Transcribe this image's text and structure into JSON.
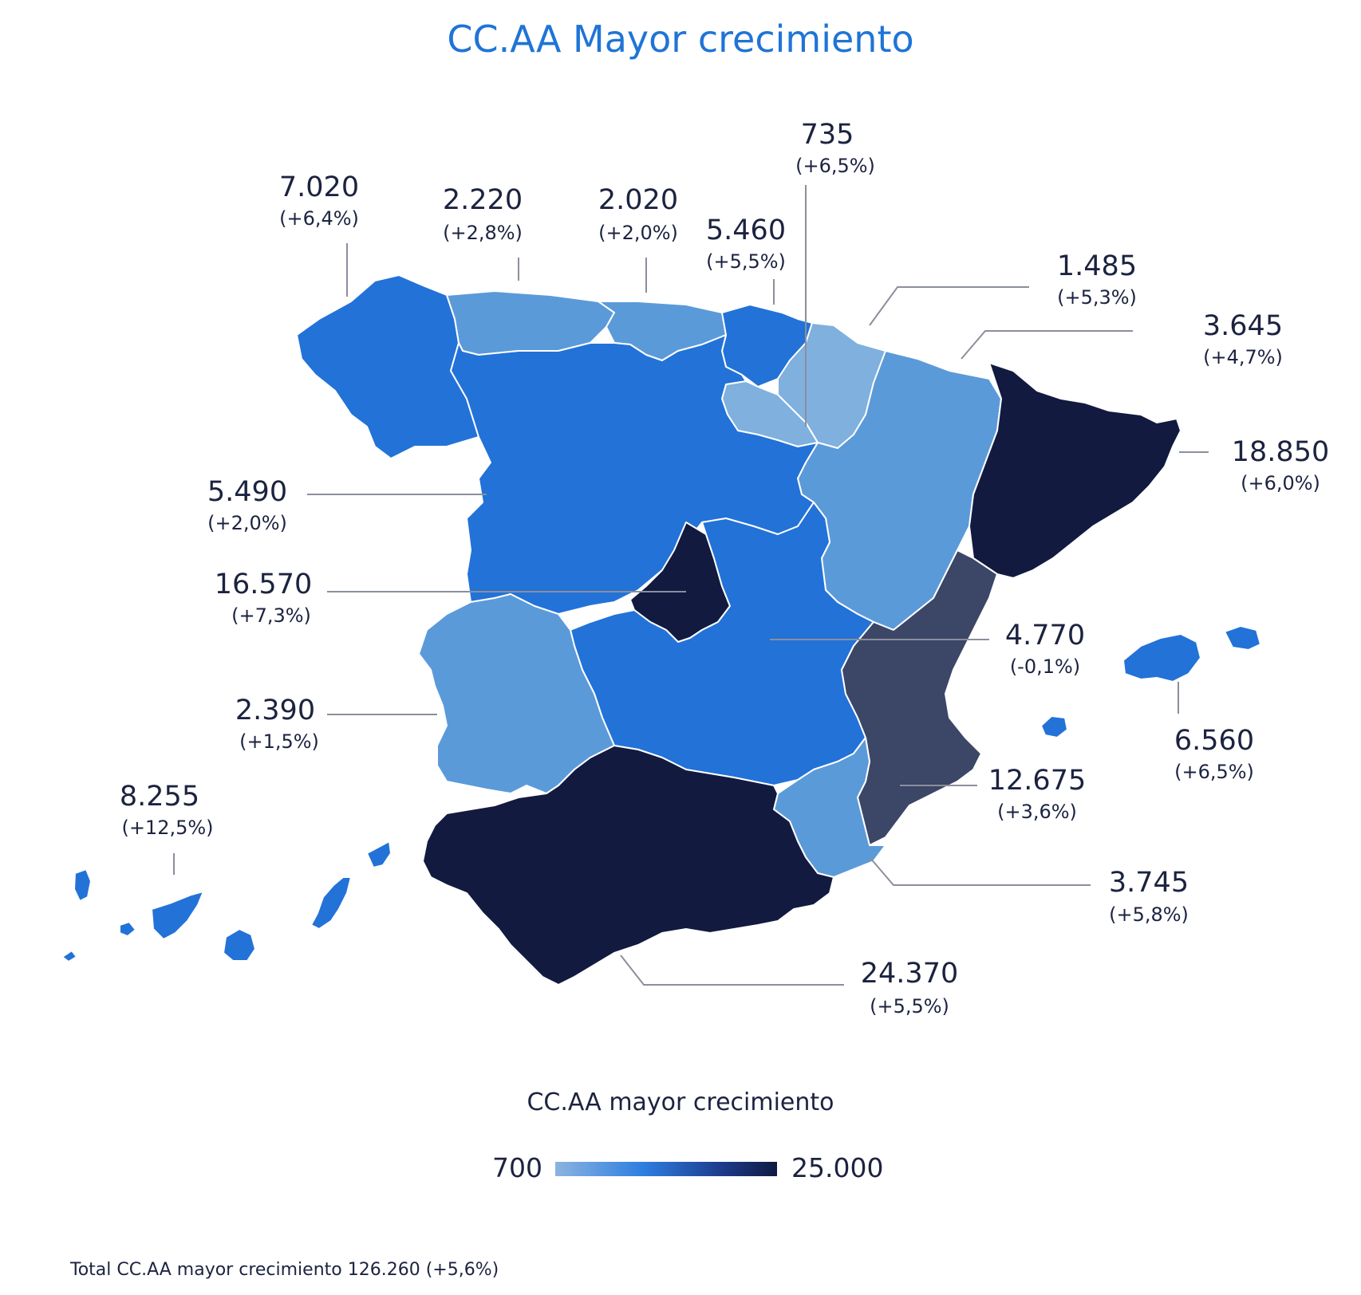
{
  "title": "CC.AA Mayor crecimiento",
  "colors": {
    "lightest": "#7fb0de",
    "light": "#5b9ad9",
    "medium": "#2272d8",
    "slate": "#3c4666",
    "darkest": "#121a40",
    "title_blue": "#1f74d6"
  },
  "regions": [
    {
      "id": "galicia",
      "value": "7.020",
      "change": "(+6,4%)"
    },
    {
      "id": "asturias",
      "value": "2.220",
      "change": "(+2,8%)"
    },
    {
      "id": "cantabria",
      "value": "2.020",
      "change": "(+2,0%)"
    },
    {
      "id": "pais-vasco",
      "value": "5.460",
      "change": "(+5,5%)"
    },
    {
      "id": "la-rioja",
      "value": "735",
      "change": "(+6,5%)"
    },
    {
      "id": "navarra",
      "value": "1.485",
      "change": "(+5,3%)"
    },
    {
      "id": "aragon",
      "value": "3.645",
      "change": "(+4,7%)"
    },
    {
      "id": "cataluna",
      "value": "18.850",
      "change": "(+6,0%)"
    },
    {
      "id": "castilla-leon",
      "value": "5.490",
      "change": "(+2,0%)"
    },
    {
      "id": "madrid",
      "value": "16.570",
      "change": "(+7,3%)"
    },
    {
      "id": "castilla-la-mancha",
      "value": "4.770",
      "change": "(-0,1%)"
    },
    {
      "id": "extremadura",
      "value": "2.390",
      "change": "(+1,5%)"
    },
    {
      "id": "baleares",
      "value": "6.560",
      "change": "(+6,5%)"
    },
    {
      "id": "valencia",
      "value": "12.675",
      "change": "(+3,6%)"
    },
    {
      "id": "canarias",
      "value": "8.255",
      "change": "(+12,5%)"
    },
    {
      "id": "murcia",
      "value": "3.745",
      "change": "(+5,8%)"
    },
    {
      "id": "andalucia",
      "value": "24.370",
      "change": "(+5,5%)"
    }
  ],
  "legend": {
    "title": "CC.AA mayor crecimiento",
    "min": "700",
    "max": "25.000"
  },
  "footnote": "Total CC.AA mayor crecimiento 126.260 (+5,6%)"
}
